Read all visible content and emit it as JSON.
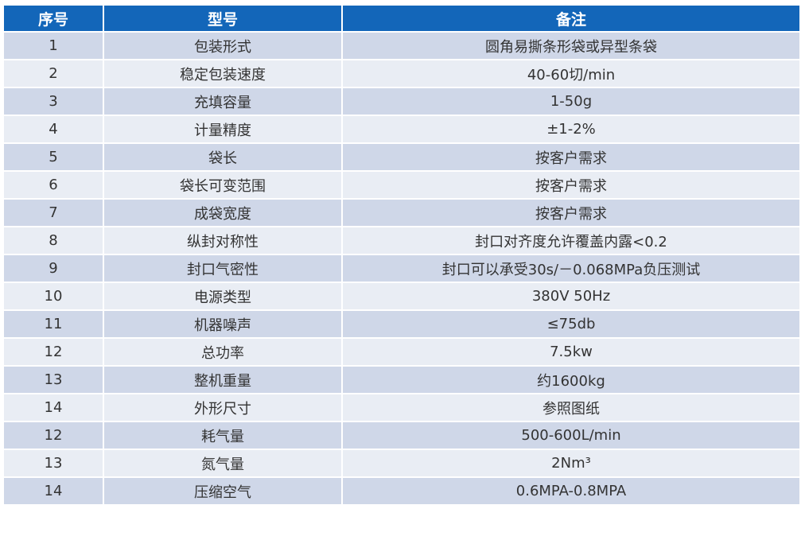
{
  "table": {
    "headers": [
      "序号",
      "型号",
      "备注"
    ],
    "rows": [
      [
        "1",
        "包装形式",
        "圆角易撕条形袋或异型条袋"
      ],
      [
        "2",
        "稳定包装速度",
        "40-60切/min"
      ],
      [
        "3",
        "充填容量",
        "1-50g"
      ],
      [
        "4",
        "计量精度",
        "±1-2%"
      ],
      [
        "5",
        "袋长",
        "按客户需求"
      ],
      [
        "6",
        "袋长可变范围",
        "按客户需求"
      ],
      [
        "7",
        "成袋宽度",
        "按客户需求"
      ],
      [
        "8",
        "纵封对称性",
        "封口对齐度允许覆盖内露<0.2"
      ],
      [
        "9",
        "封口气密性",
        "封口可以承受30s/－0.068MPa负压测试"
      ],
      [
        "10",
        "电源类型",
        "380V 50Hz"
      ],
      [
        "11",
        "机器噪声",
        "≤75db"
      ],
      [
        "12",
        "总功率",
        "7.5kw"
      ],
      [
        "13",
        "整机重量",
        "约1600kg"
      ],
      [
        "14",
        "外形尺寸",
        "参照图纸"
      ],
      [
        "12",
        "耗气量",
        "500-600L/min"
      ],
      [
        "13",
        "氮气量",
        "2Nm³"
      ],
      [
        "14",
        "压缩空气",
        "0.6MPA-0.8MPA"
      ]
    ]
  },
  "colors": {
    "header_bg": "#1366b9",
    "row_dark": "#cfd7e8",
    "row_light": "#e9edf4"
  }
}
